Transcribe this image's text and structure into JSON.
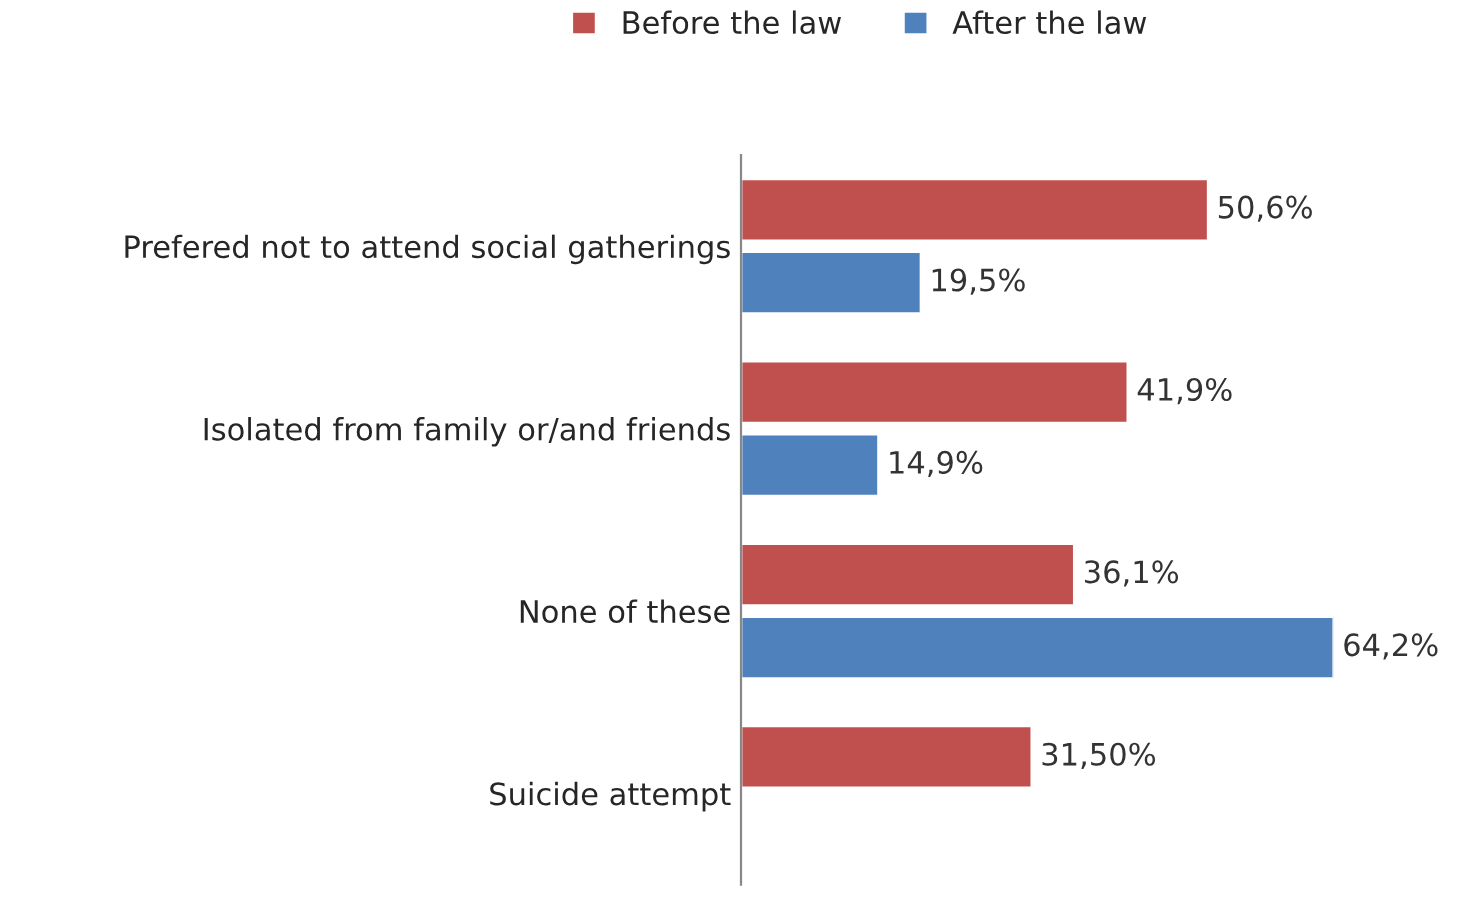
{
  "chart_data": {
    "type": "bar",
    "orientation": "horizontal",
    "categories": [
      "Prefered not to attend social gatherings",
      "Isolated from family or/and friends",
      "None of these",
      "Suicide attempt"
    ],
    "series": [
      {
        "name": "Before the law",
        "color": "#c0504d",
        "values": [
          50.6,
          41.9,
          36.1,
          31.5
        ],
        "value_labels": [
          "50,6%",
          "41,9%",
          "36,1%",
          "31,50%"
        ]
      },
      {
        "name": "After the law",
        "color": "#4f81bd",
        "values": [
          19.5,
          14.9,
          64.2,
          null
        ],
        "value_labels": [
          "19,5%",
          "14,9%",
          "64,2%",
          null
        ]
      }
    ],
    "legend": "top",
    "grid": false
  }
}
